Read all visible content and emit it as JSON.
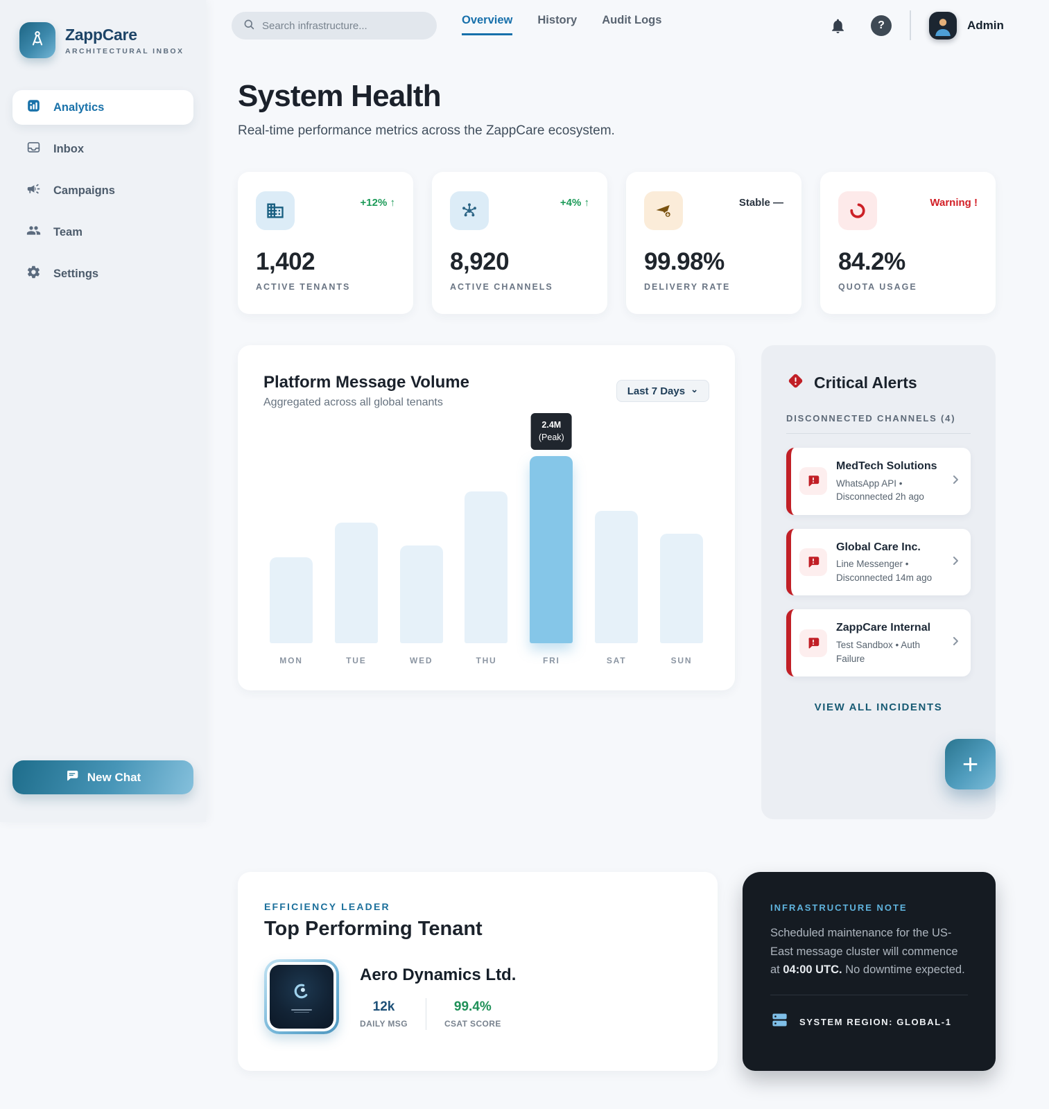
{
  "brand": {
    "name": "ZappCare",
    "tagline": "ARCHITECTURAL INBOX"
  },
  "sidebar": {
    "items": [
      {
        "label": "Analytics",
        "active": true
      },
      {
        "label": "Inbox",
        "active": false
      },
      {
        "label": "Campaigns",
        "active": false
      },
      {
        "label": "Team",
        "active": false
      },
      {
        "label": "Settings",
        "active": false
      }
    ],
    "new_chat_label": "New Chat"
  },
  "topbar": {
    "search_placeholder": "Search infrastructure...",
    "tabs": [
      "Overview",
      "History",
      "Audit Logs"
    ],
    "active_tab": "Overview",
    "user": "Admin"
  },
  "header": {
    "title": "System Health",
    "subtitle": "Real-time performance metrics across the ZappCare ecosystem."
  },
  "stats": [
    {
      "value": "1,402",
      "label": "ACTIVE TENANTS",
      "trend": "+12%",
      "arrow": "↑",
      "trend_type": "up",
      "icon": "building-icon"
    },
    {
      "value": "8,920",
      "label": "ACTIVE CHANNELS",
      "trend": "+4%",
      "arrow": "↑",
      "trend_type": "up",
      "icon": "hub-icon"
    },
    {
      "value": "99.98%",
      "label": "DELIVERY RATE",
      "trend": "Stable",
      "arrow": "—",
      "trend_type": "stable",
      "icon": "send-icon"
    },
    {
      "value": "84.2%",
      "label": "QUOTA USAGE",
      "trend": "Warning",
      "arrow": "!",
      "trend_type": "warning",
      "icon": "quota-icon"
    }
  ],
  "chart": {
    "title": "Platform Message Volume",
    "subtitle": "Aggregated across all global tenants",
    "range_label": "Last 7 Days",
    "tooltip": {
      "line1": "2.4M",
      "line2": "(Peak)"
    }
  },
  "chart_data": {
    "type": "bar",
    "categories": [
      "MON",
      "TUE",
      "WED",
      "THU",
      "FRI",
      "SAT",
      "SUN"
    ],
    "values": [
      1.1,
      1.55,
      1.25,
      1.95,
      2.4,
      1.7,
      1.4
    ],
    "unit": "millions of messages",
    "title": "Platform Message Volume",
    "subtitle": "Aggregated across all global tenants",
    "xlabel": "",
    "ylabel": "",
    "ylim": [
      0,
      2.4
    ],
    "peak_index": 4,
    "peak_label": "2.4M (Peak)",
    "grid": false,
    "legend": false,
    "colors": {
      "bar": "#e6f1f9",
      "peak_bar": "#85c6e8"
    }
  },
  "alerts": {
    "title": "Critical Alerts",
    "section_label": "DISCONNECTED CHANNELS (4)",
    "items": [
      {
        "name": "MedTech Solutions",
        "detail": "WhatsApp API • Disconnected 2h ago"
      },
      {
        "name": "Global Care Inc.",
        "detail": "Line Messenger • Disconnected 14m ago"
      },
      {
        "name": "ZappCare Internal",
        "detail": "Test Sandbox • Auth Failure"
      }
    ],
    "view_all": "VIEW ALL INCIDENTS"
  },
  "tenant": {
    "eyebrow": "EFFICIENCY LEADER",
    "title": "Top Performing Tenant",
    "name": "Aero Dynamics Ltd.",
    "stats": [
      {
        "value": "12k",
        "label": "DAILY MSG"
      },
      {
        "value": "99.4%",
        "label": "CSAT SCORE"
      }
    ]
  },
  "note": {
    "eyebrow": "INFRASTRUCTURE NOTE",
    "body_pre": "Scheduled maintenance for the US-East message cluster will commence at ",
    "body_em": "04:00 UTC.",
    "body_post": " No downtime expected.",
    "footer": "SYSTEM REGION: GLOBAL-1"
  },
  "icons": {
    "help": "?",
    "plus": "+",
    "caret": "⌄"
  },
  "colors": {
    "accent_blue": "#1770ab",
    "accent_teal": "#1e6d8b",
    "alert_red": "#c11f26",
    "green": "#1c9a58",
    "warning_red": "#d21f26",
    "dark_card": "#151b22",
    "peak_bar": "#85c6e8",
    "light_bar": "#e6f1f9"
  }
}
